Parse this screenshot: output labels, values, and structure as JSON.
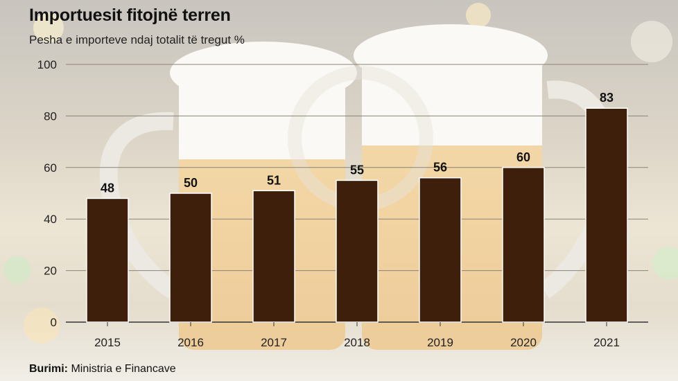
{
  "header": {
    "title": "Importuesit fitojnë terren",
    "subtitle": "Pesha e importeve ndaj totalit të tregut %"
  },
  "footer": {
    "source_label": "Burimi:",
    "source_text": "Ministria e Financave"
  },
  "colors": {
    "bar": "#3d1f0c",
    "grid": "#8a8478",
    "axis": "#333333",
    "text": "#111111"
  },
  "chart_data": {
    "type": "bar",
    "title": "Importuesit fitojnë terren",
    "subtitle": "Pesha e importeve ndaj totalit të tregut %",
    "xlabel": "",
    "ylabel": "",
    "categories": [
      "2015",
      "2016",
      "2017",
      "2018",
      "2019",
      "2020",
      "2021"
    ],
    "values": [
      48,
      50,
      51,
      55,
      56,
      60,
      83
    ],
    "ylim": [
      0,
      100
    ],
    "yticks": [
      0,
      20,
      40,
      60,
      80,
      100
    ],
    "grid": true,
    "data_labels": true
  }
}
